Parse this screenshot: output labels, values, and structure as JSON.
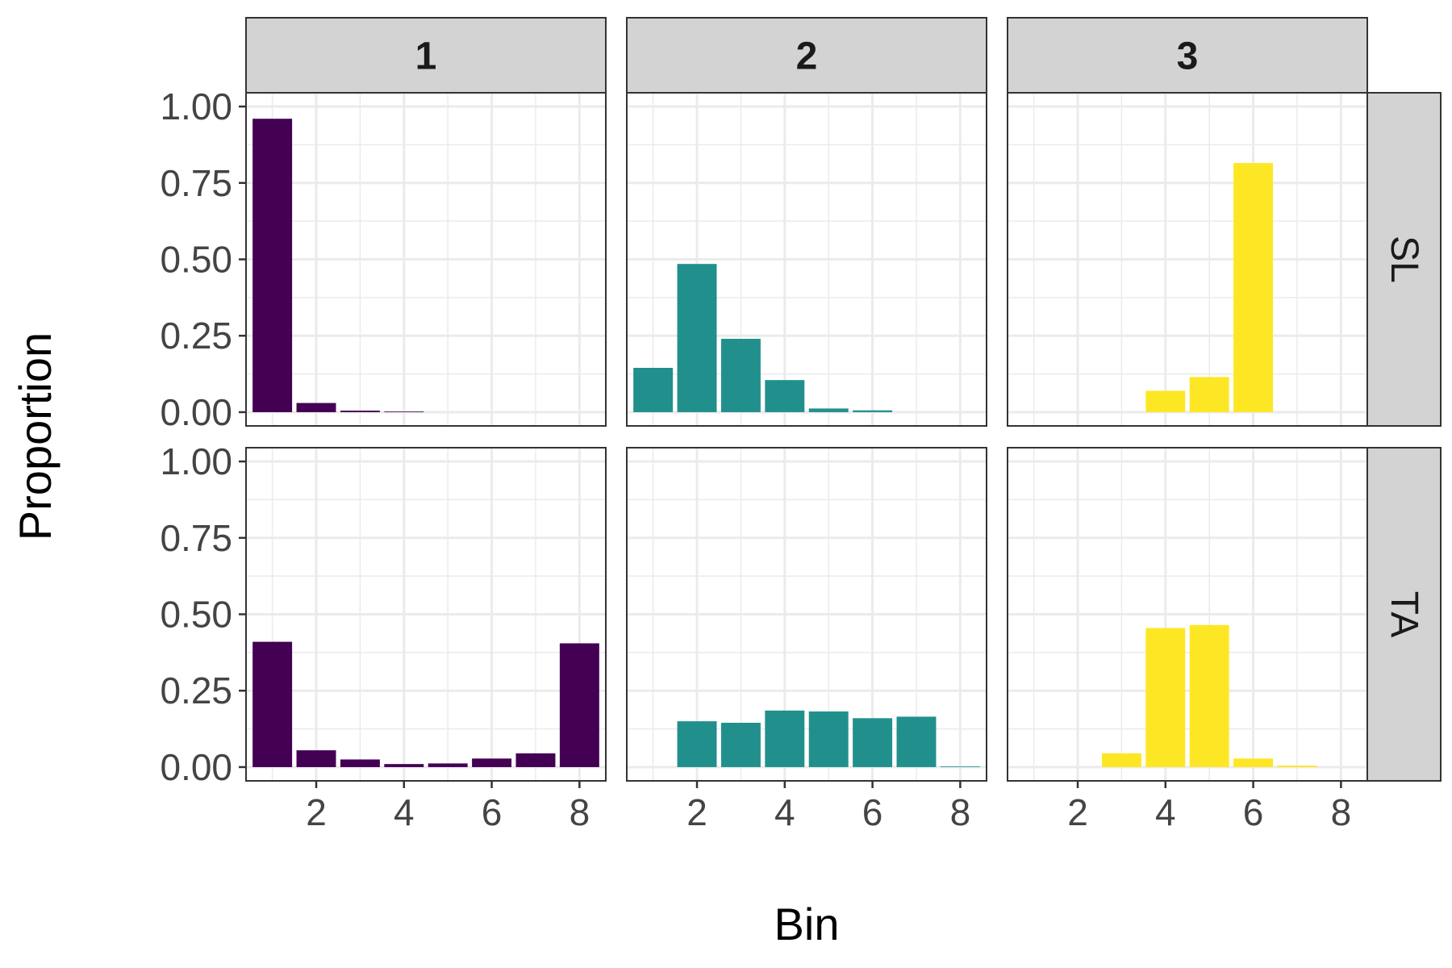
{
  "chart_data": {
    "type": "bar",
    "xlabel": "Bin",
    "ylabel": "Proportion",
    "x_ticks": [
      2,
      4,
      6,
      8
    ],
    "y_ticks": [
      "0.00",
      "0.25",
      "0.50",
      "0.75",
      "1.00"
    ],
    "xlim": [
      0.4,
      8.6
    ],
    "ylim": [
      -0.045,
      1.045
    ],
    "grid": true,
    "legend": "none",
    "column_facets": [
      "1",
      "2",
      "3"
    ],
    "row_facets": [
      "SL",
      "TA"
    ],
    "colors": {
      "1": "#440154",
      "2": "#21908C",
      "3": "#FDE725",
      "strip_fill": "#D3D3D3",
      "grid": "#EBEBEB",
      "panel_border": "#333333"
    },
    "panels": [
      {
        "row": "SL",
        "col": "1",
        "bins": [
          1,
          2,
          3,
          4,
          5,
          6,
          7,
          8
        ],
        "values": [
          0.96,
          0.03,
          0.005,
          0.002,
          0,
          0,
          0,
          0
        ]
      },
      {
        "row": "SL",
        "col": "2",
        "bins": [
          1,
          2,
          3,
          4,
          5,
          6,
          7,
          8
        ],
        "values": [
          0.145,
          0.485,
          0.24,
          0.105,
          0.012,
          0.006,
          0,
          0
        ]
      },
      {
        "row": "SL",
        "col": "3",
        "bins": [
          1,
          2,
          3,
          4,
          5,
          6,
          7,
          8
        ],
        "values": [
          0,
          0,
          0,
          0.07,
          0.115,
          0.815,
          0,
          0
        ]
      },
      {
        "row": "TA",
        "col": "1",
        "bins": [
          1,
          2,
          3,
          4,
          5,
          6,
          7,
          8
        ],
        "values": [
          0.41,
          0.055,
          0.025,
          0.01,
          0.012,
          0.028,
          0.045,
          0.405
        ]
      },
      {
        "row": "TA",
        "col": "2",
        "bins": [
          1,
          2,
          3,
          4,
          5,
          6,
          7,
          8
        ],
        "values": [
          0,
          0.15,
          0.145,
          0.185,
          0.182,
          0.16,
          0.165,
          0.002
        ]
      },
      {
        "row": "TA",
        "col": "3",
        "bins": [
          1,
          2,
          3,
          4,
          5,
          6,
          7,
          8
        ],
        "values": [
          0,
          0,
          0.045,
          0.455,
          0.465,
          0.028,
          0.005,
          0
        ]
      }
    ]
  }
}
